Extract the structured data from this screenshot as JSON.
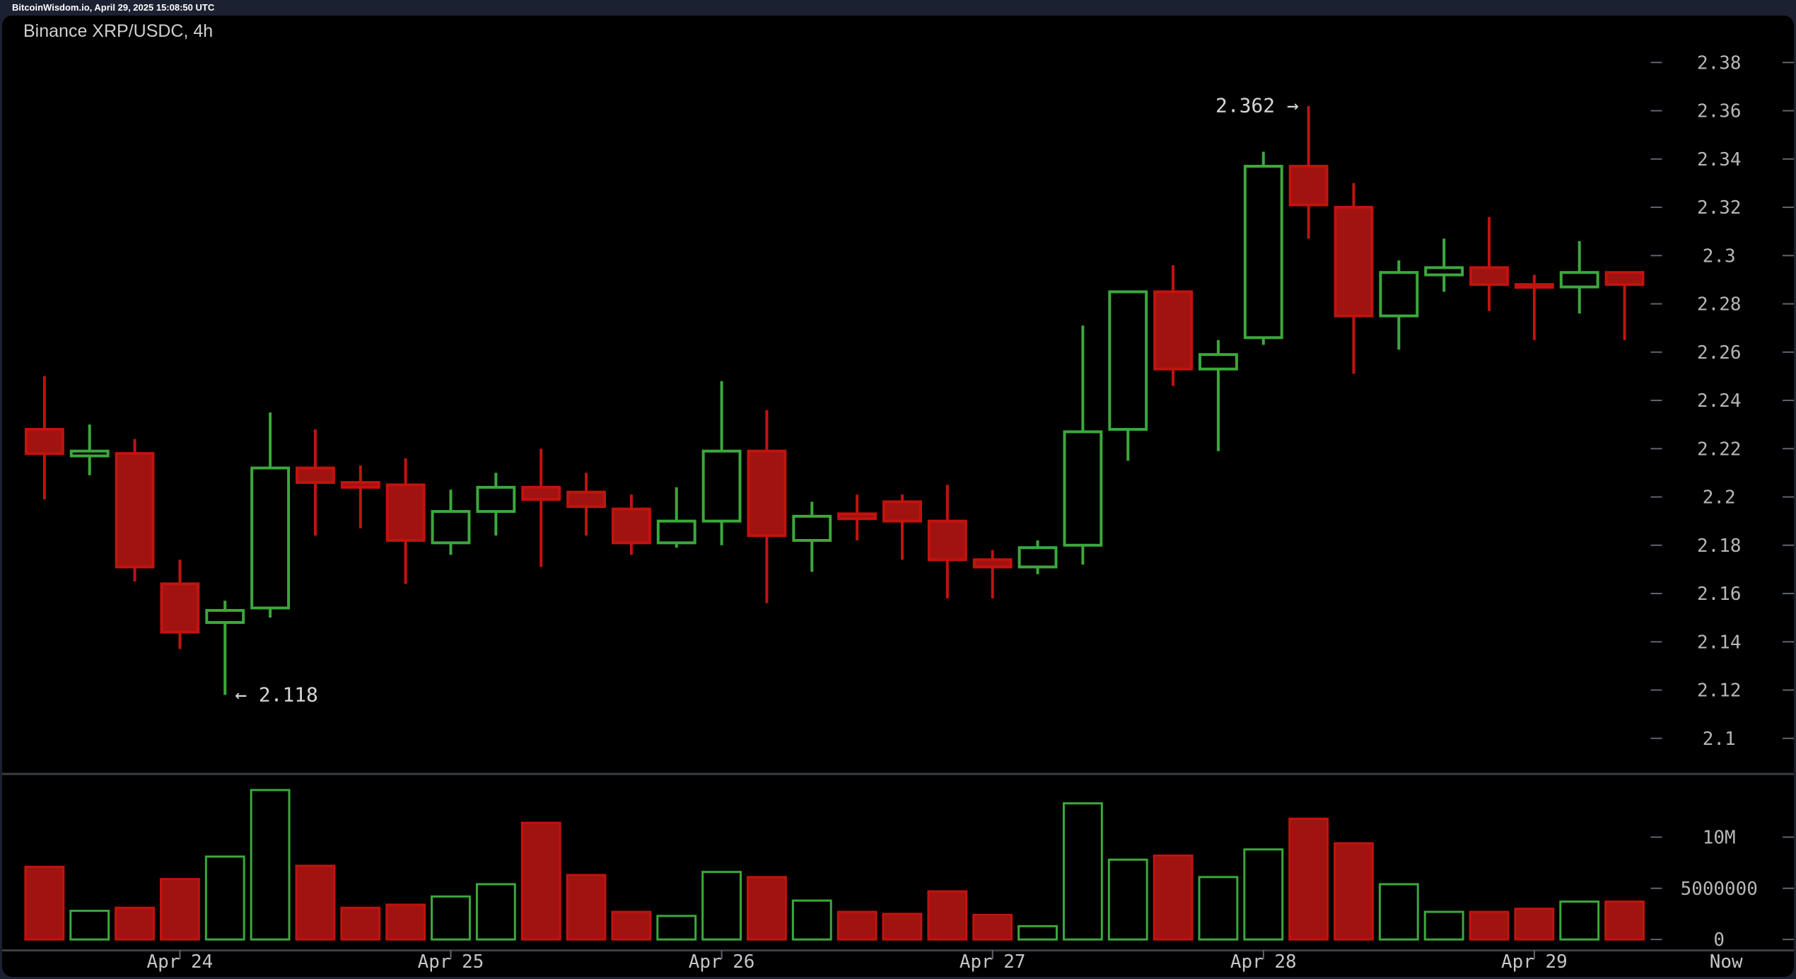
{
  "header": {
    "status_line": "BitcoinWisdom.io, April 29, 2025 15:08:50 UTC"
  },
  "chart_data": {
    "type": "candlestick+volume",
    "title": "Binance XRP/USDC, 4h",
    "symbol": "XRP/USDC",
    "exchange": "Binance",
    "interval": "4h",
    "legend_position": "none",
    "grid": false,
    "colors": {
      "background": "#000000",
      "frame": "#1c2132",
      "up_stroke": "#3CA83C",
      "up_fill": "#000000",
      "down_stroke": "#C2130F",
      "down_fill": "#A01310",
      "separator": "#3a3f47",
      "tick": "#60646e",
      "axis_text": "#b6b6b6",
      "day_text": "#c5c5c5",
      "annotation_text": "#d6d6d6"
    },
    "price_axis": {
      "min": 2.1,
      "max": 2.38,
      "ticks": [
        {
          "label": "2.38",
          "value": 2.38
        },
        {
          "label": "2.36",
          "value": 2.36
        },
        {
          "label": "2.34",
          "value": 2.34
        },
        {
          "label": "2.32",
          "value": 2.32
        },
        {
          "label": "2.3",
          "value": 2.3
        },
        {
          "label": "2.28",
          "value": 2.28
        },
        {
          "label": "2.26",
          "value": 2.26
        },
        {
          "label": "2.24",
          "value": 2.24
        },
        {
          "label": "2.22",
          "value": 2.22
        },
        {
          "label": "2.2",
          "value": 2.2
        },
        {
          "label": "2.18",
          "value": 2.18
        },
        {
          "label": "2.16",
          "value": 2.16
        },
        {
          "label": "2.14",
          "value": 2.14
        },
        {
          "label": "2.12",
          "value": 2.12
        },
        {
          "label": "2.1",
          "value": 2.1
        }
      ]
    },
    "volume_axis": {
      "unit": "millions",
      "ticks": [
        {
          "label": "10M",
          "value": 10
        },
        {
          "label": "5000000",
          "value": 5
        },
        {
          "label": "0",
          "value": 0
        }
      ]
    },
    "x_axis": {
      "day_labels": [
        "Apr 24",
        "Apr 25",
        "Apr 26",
        "Apr 27",
        "Apr 28",
        "Apr 29"
      ],
      "day_candle_indices": [
        3,
        9,
        15,
        21,
        27,
        33
      ],
      "now_label": "Now"
    },
    "annotations": [
      {
        "text": "2.362 →",
        "price": 2.362,
        "candle_index": 28,
        "side": "left"
      },
      {
        "text": "← 2.118",
        "price": 2.118,
        "candle_index": 4,
        "side": "right"
      }
    ],
    "candles_format": [
      "open",
      "high",
      "low",
      "close",
      "volume_millions"
    ],
    "candles": [
      [
        2.228,
        2.25,
        2.199,
        2.218,
        7.1
      ],
      [
        2.217,
        2.23,
        2.209,
        2.219,
        2.8
      ],
      [
        2.218,
        2.224,
        2.165,
        2.171,
        3.1
      ],
      [
        2.164,
        2.174,
        2.137,
        2.144,
        5.9
      ],
      [
        2.148,
        2.157,
        2.118,
        2.153,
        8.1
      ],
      [
        2.154,
        2.235,
        2.15,
        2.212,
        14.6
      ],
      [
        2.212,
        2.228,
        2.184,
        2.206,
        7.2
      ],
      [
        2.206,
        2.213,
        2.187,
        2.204,
        3.1
      ],
      [
        2.205,
        2.216,
        2.164,
        2.182,
        3.4
      ],
      [
        2.181,
        2.203,
        2.176,
        2.194,
        4.2
      ],
      [
        2.194,
        2.21,
        2.184,
        2.204,
        5.4
      ],
      [
        2.204,
        2.22,
        2.171,
        2.199,
        11.4
      ],
      [
        2.202,
        2.21,
        2.184,
        2.196,
        6.3
      ],
      [
        2.195,
        2.201,
        2.176,
        2.181,
        2.7
      ],
      [
        2.181,
        2.204,
        2.179,
        2.19,
        2.3
      ],
      [
        2.19,
        2.248,
        2.18,
        2.219,
        6.6
      ],
      [
        2.219,
        2.236,
        2.156,
        2.184,
        6.1
      ],
      [
        2.182,
        2.198,
        2.169,
        2.192,
        3.8
      ],
      [
        2.193,
        2.201,
        2.182,
        2.191,
        2.7
      ],
      [
        2.198,
        2.201,
        2.174,
        2.19,
        2.5
      ],
      [
        2.19,
        2.205,
        2.158,
        2.174,
        4.7
      ],
      [
        2.174,
        2.178,
        2.158,
        2.171,
        2.4
      ],
      [
        2.171,
        2.182,
        2.168,
        2.179,
        1.3
      ],
      [
        2.18,
        2.271,
        2.172,
        2.227,
        13.3
      ],
      [
        2.228,
        2.285,
        2.215,
        2.285,
        7.8
      ],
      [
        2.285,
        2.296,
        2.246,
        2.253,
        8.2
      ],
      [
        2.253,
        2.265,
        2.219,
        2.259,
        6.1
      ],
      [
        2.266,
        2.343,
        2.263,
        2.337,
        8.8
      ],
      [
        2.337,
        2.362,
        2.307,
        2.321,
        11.8
      ],
      [
        2.32,
        2.33,
        2.251,
        2.275,
        9.4
      ],
      [
        2.275,
        2.298,
        2.261,
        2.293,
        5.4
      ],
      [
        2.292,
        2.307,
        2.285,
        2.295,
        2.7
      ],
      [
        2.295,
        2.316,
        2.277,
        2.288,
        2.7
      ],
      [
        2.288,
        2.292,
        2.265,
        2.287,
        3.0
      ],
      [
        2.287,
        2.306,
        2.276,
        2.293,
        3.7
      ],
      [
        2.293,
        2.293,
        2.265,
        2.288,
        3.7
      ]
    ]
  }
}
